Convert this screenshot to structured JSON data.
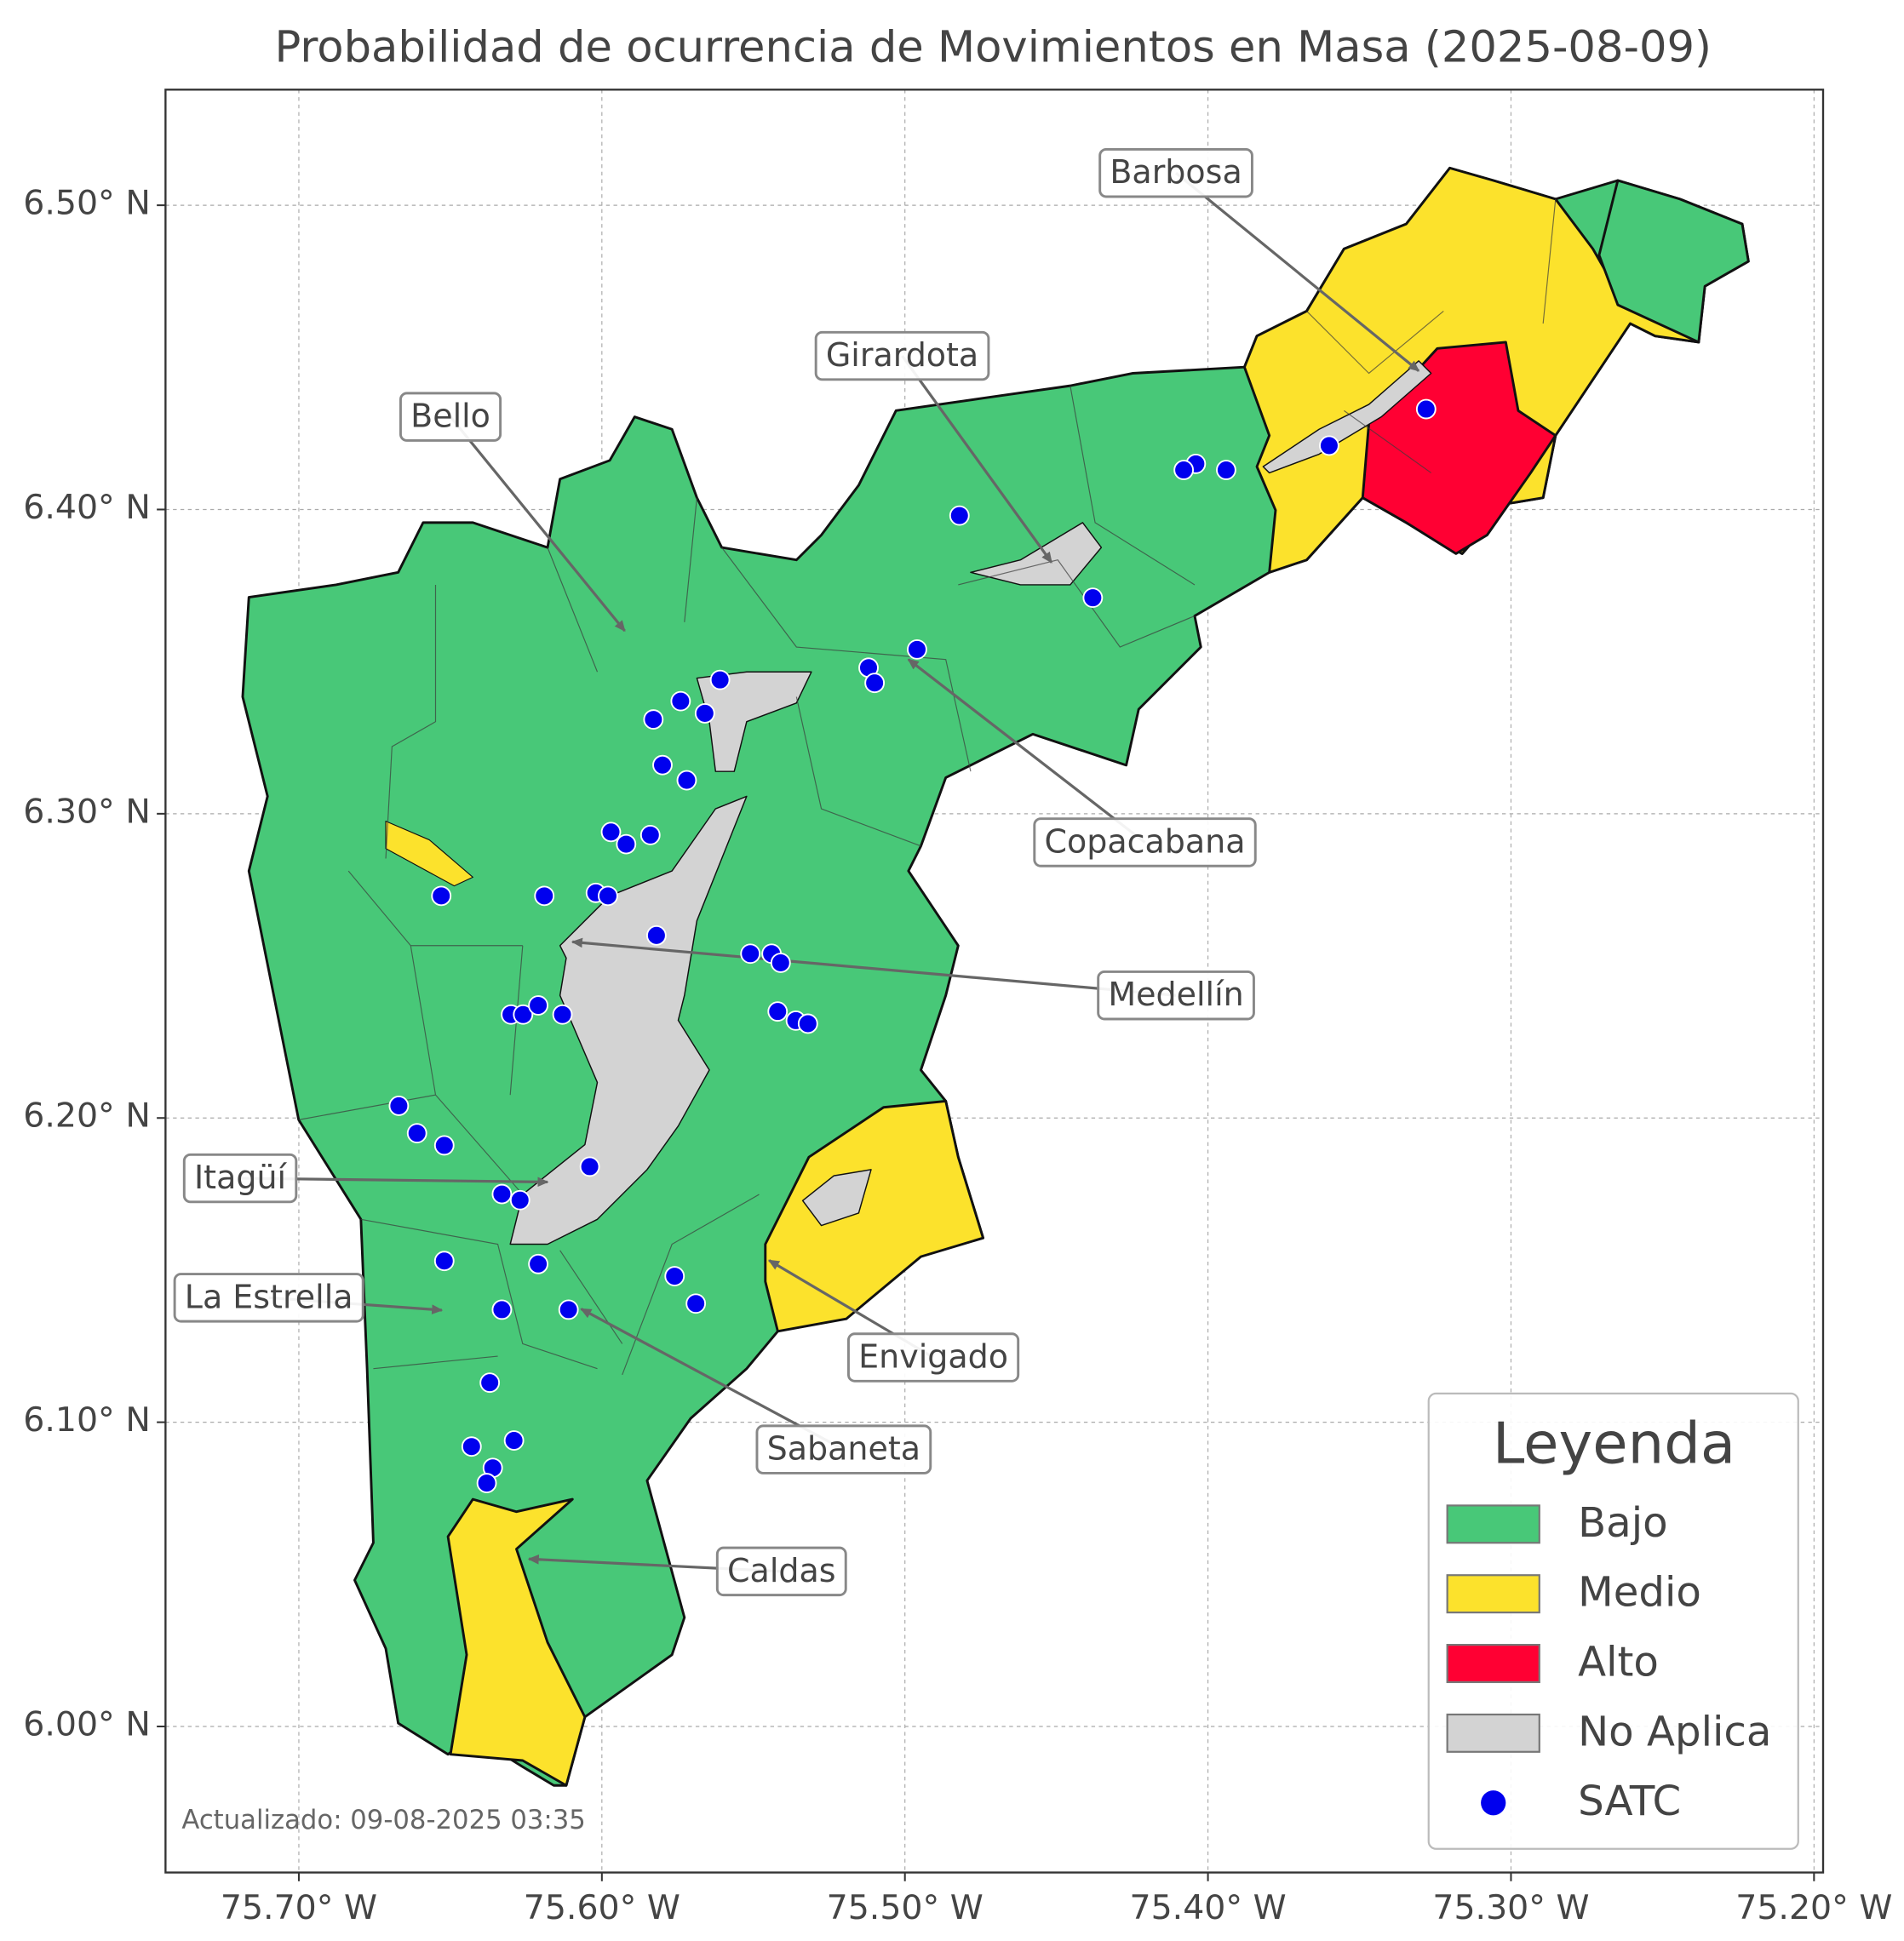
{
  "chart_data": {
    "type": "map",
    "title": "Probabilidad de ocurrencia de Movimientos en Masa (2025-08-09)",
    "xlim": [
      -75.744,
      -75.197
    ],
    "ylim": [
      5.952,
      6.538
    ],
    "xticks": [
      {
        "value": -75.7,
        "label": "75.70° W"
      },
      {
        "value": -75.6,
        "label": "75.60° W"
      },
      {
        "value": -75.5,
        "label": "75.50° W"
      },
      {
        "value": -75.4,
        "label": "75.40° W"
      },
      {
        "value": -75.3,
        "label": "75.30° W"
      },
      {
        "value": -75.2,
        "label": "75.20° W"
      }
    ],
    "yticks": [
      {
        "value": 6.0,
        "label": "6.00° N"
      },
      {
        "value": 6.1,
        "label": "6.10° N"
      },
      {
        "value": 6.2,
        "label": "6.20° N"
      },
      {
        "value": 6.3,
        "label": "6.30° N"
      },
      {
        "value": 6.4,
        "label": "6.40° N"
      },
      {
        "value": 6.5,
        "label": "6.50° N"
      }
    ],
    "grid": true,
    "legend_title": "Leyenda",
    "legend": [
      {
        "label": "Bajo",
        "color": "#48c878"
      },
      {
        "label": "Medio",
        "color": "#fce22c"
      },
      {
        "label": "Alto",
        "color": "#ff0033"
      },
      {
        "label": "No Aplica",
        "color": "#d3d3d3"
      },
      {
        "label": "SATC",
        "color": "#0000ee"
      }
    ],
    "annotations": [
      "Barbosa",
      "Girardota",
      "Bello",
      "Copacabana",
      "Medellín",
      "Itagüí",
      "La Estrella",
      "Envigado",
      "Sabaneta",
      "Caldas"
    ],
    "footer": "Actualizado: 09-08-2025 03:35",
    "satc": {
      "lon": [
        -75.328,
        -75.36,
        -75.394,
        -75.404,
        -75.408,
        -75.482,
        -75.438,
        -75.496,
        -75.512,
        -75.51,
        -75.561,
        -75.574,
        -75.583,
        -75.566,
        -75.58,
        -75.572,
        -75.597,
        -75.592,
        -75.584,
        -75.619,
        -75.602,
        -75.598,
        -75.653,
        -75.582,
        -75.551,
        -75.544,
        -75.541,
        -75.542,
        -75.536,
        -75.532,
        -75.63,
        -75.626,
        -75.621,
        -75.613,
        -75.667,
        -75.661,
        -75.652,
        -75.604,
        -75.633,
        -75.627,
        -75.652,
        -75.621,
        -75.576,
        -75.569,
        -75.633,
        -75.611,
        -75.637,
        -75.643,
        -75.629,
        -75.636,
        -75.638
      ],
      "lat": [
        6.433,
        6.421,
        6.413,
        6.415,
        6.413,
        6.398,
        6.371,
        6.354,
        6.348,
        6.343,
        6.344,
        6.337,
        6.331,
        6.333,
        6.316,
        6.311,
        6.294,
        6.29,
        6.293,
        6.273,
        6.274,
        6.273,
        6.273,
        6.26,
        6.254,
        6.254,
        6.251,
        6.235,
        6.232,
        6.231,
        6.234,
        6.234,
        6.237,
        6.234,
        6.204,
        6.195,
        6.191,
        6.184,
        6.175,
        6.173,
        6.153,
        6.152,
        6.148,
        6.139,
        6.137,
        6.137,
        6.113,
        6.092,
        6.094,
        6.085,
        6.08
      ]
    }
  }
}
